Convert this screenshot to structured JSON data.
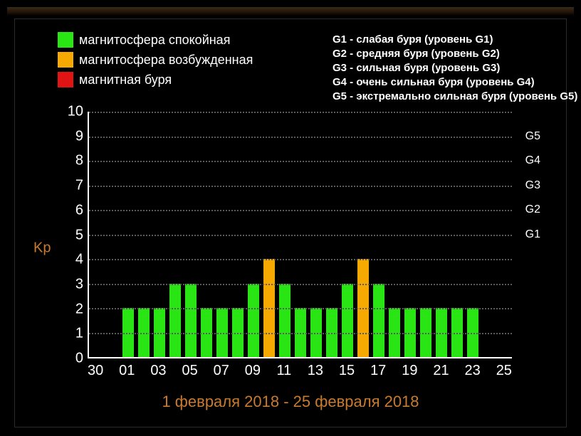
{
  "legend": {
    "items": [
      {
        "color": "#29e514",
        "label": "магнитосфера спокойная"
      },
      {
        "color": "#f6a900",
        "label": "магнитосфера возбужденная"
      },
      {
        "color": "#e11414",
        "label": "магнитная буря"
      }
    ]
  },
  "g_scale": {
    "lines": [
      "G1 - слабая буря (уровень G1)",
      "G2 - средняя буря (уровень G2)",
      "G3 - сильная буря (уровень G3)",
      "G4 - очень сильная буря (уровень G4)",
      "G5 - экстремально сильная буря (уровень G5)"
    ]
  },
  "chart": {
    "type": "bar",
    "y_label": "Kp",
    "y_label_color": "#c97a2e",
    "y_min": 0,
    "y_max": 10,
    "y_tick_step": 1,
    "x_title": "1 февраля 2018 - 25 февраля 2018",
    "x_title_color": "#c97a2e",
    "grid_color": "#5a5a5a",
    "axis_color": "#ffffff",
    "background_color": "#000000",
    "bar_width_ratio": 0.7,
    "colors": {
      "calm": "#29e514",
      "excited": "#f6a900",
      "storm": "#e11414"
    },
    "g_markers": [
      {
        "label": "G1",
        "kp": 5
      },
      {
        "label": "G2",
        "kp": 6
      },
      {
        "label": "G3",
        "kp": 7
      },
      {
        "label": "G4",
        "kp": 8
      },
      {
        "label": "G5",
        "kp": 9
      }
    ],
    "categories": [
      {
        "tick": "30",
        "value": 0,
        "state": "calm"
      },
      {
        "tick": "",
        "value": 0,
        "state": "calm"
      },
      {
        "tick": "01",
        "value": 2,
        "state": "calm"
      },
      {
        "tick": "",
        "value": 2,
        "state": "calm"
      },
      {
        "tick": "03",
        "value": 2,
        "state": "calm"
      },
      {
        "tick": "",
        "value": 3,
        "state": "calm"
      },
      {
        "tick": "05",
        "value": 3,
        "state": "calm"
      },
      {
        "tick": "",
        "value": 2,
        "state": "calm"
      },
      {
        "tick": "07",
        "value": 2,
        "state": "calm"
      },
      {
        "tick": "",
        "value": 2,
        "state": "calm"
      },
      {
        "tick": "09",
        "value": 3,
        "state": "calm"
      },
      {
        "tick": "",
        "value": 4,
        "state": "excited"
      },
      {
        "tick": "11",
        "value": 3,
        "state": "calm"
      },
      {
        "tick": "",
        "value": 2,
        "state": "calm"
      },
      {
        "tick": "13",
        "value": 2,
        "state": "calm"
      },
      {
        "tick": "",
        "value": 2,
        "state": "calm"
      },
      {
        "tick": "15",
        "value": 3,
        "state": "calm"
      },
      {
        "tick": "",
        "value": 4,
        "state": "excited"
      },
      {
        "tick": "17",
        "value": 3,
        "state": "calm"
      },
      {
        "tick": "",
        "value": 2,
        "state": "calm"
      },
      {
        "tick": "19",
        "value": 2,
        "state": "calm"
      },
      {
        "tick": "",
        "value": 2,
        "state": "calm"
      },
      {
        "tick": "21",
        "value": 2,
        "state": "calm"
      },
      {
        "tick": "",
        "value": 2,
        "state": "calm"
      },
      {
        "tick": "23",
        "value": 2,
        "state": "calm"
      },
      {
        "tick": "",
        "value": 0,
        "state": "calm"
      },
      {
        "tick": "25",
        "value": 0,
        "state": "calm"
      }
    ]
  }
}
